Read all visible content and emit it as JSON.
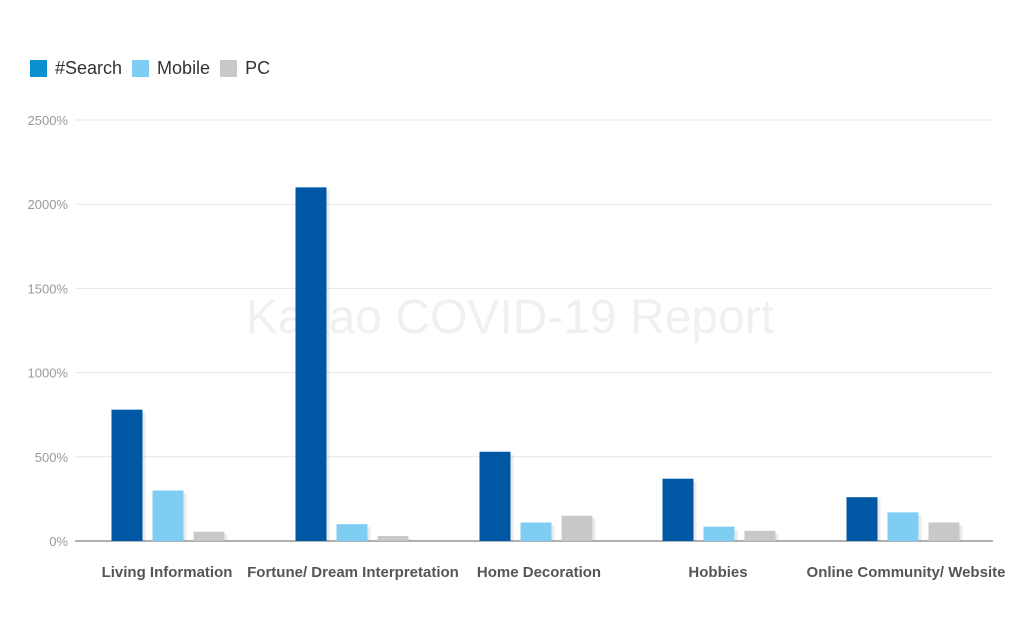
{
  "watermark": "Kakao COVID-19 Report",
  "colors": {
    "#Search": "#0057a3",
    "Mobile": "#7fcdf3",
    "PC": "#c8c8c8",
    "legend_search": "#0a8fd0"
  },
  "chart_data": {
    "type": "bar",
    "categories": [
      "Living Information",
      "Fortune/ Dream Interpretation",
      "Home Decoration",
      "Hobbies",
      "Online Community/ Website"
    ],
    "series": [
      {
        "name": "#Search",
        "values": [
          780,
          2100,
          530,
          370,
          260
        ]
      },
      {
        "name": "Mobile",
        "values": [
          300,
          100,
          110,
          85,
          170
        ]
      },
      {
        "name": "PC",
        "values": [
          55,
          30,
          150,
          60,
          110
        ]
      }
    ],
    "ylim": [
      0,
      2500
    ],
    "yticks": [
      "0%",
      "500%",
      "1000%",
      "1500%",
      "2000%",
      "2500%"
    ],
    "ytick_values": [
      0,
      500,
      1000,
      1500,
      2000,
      2500
    ],
    "grid": true,
    "legend_position": "top-left",
    "title": "",
    "xlabel": "",
    "ylabel": ""
  }
}
